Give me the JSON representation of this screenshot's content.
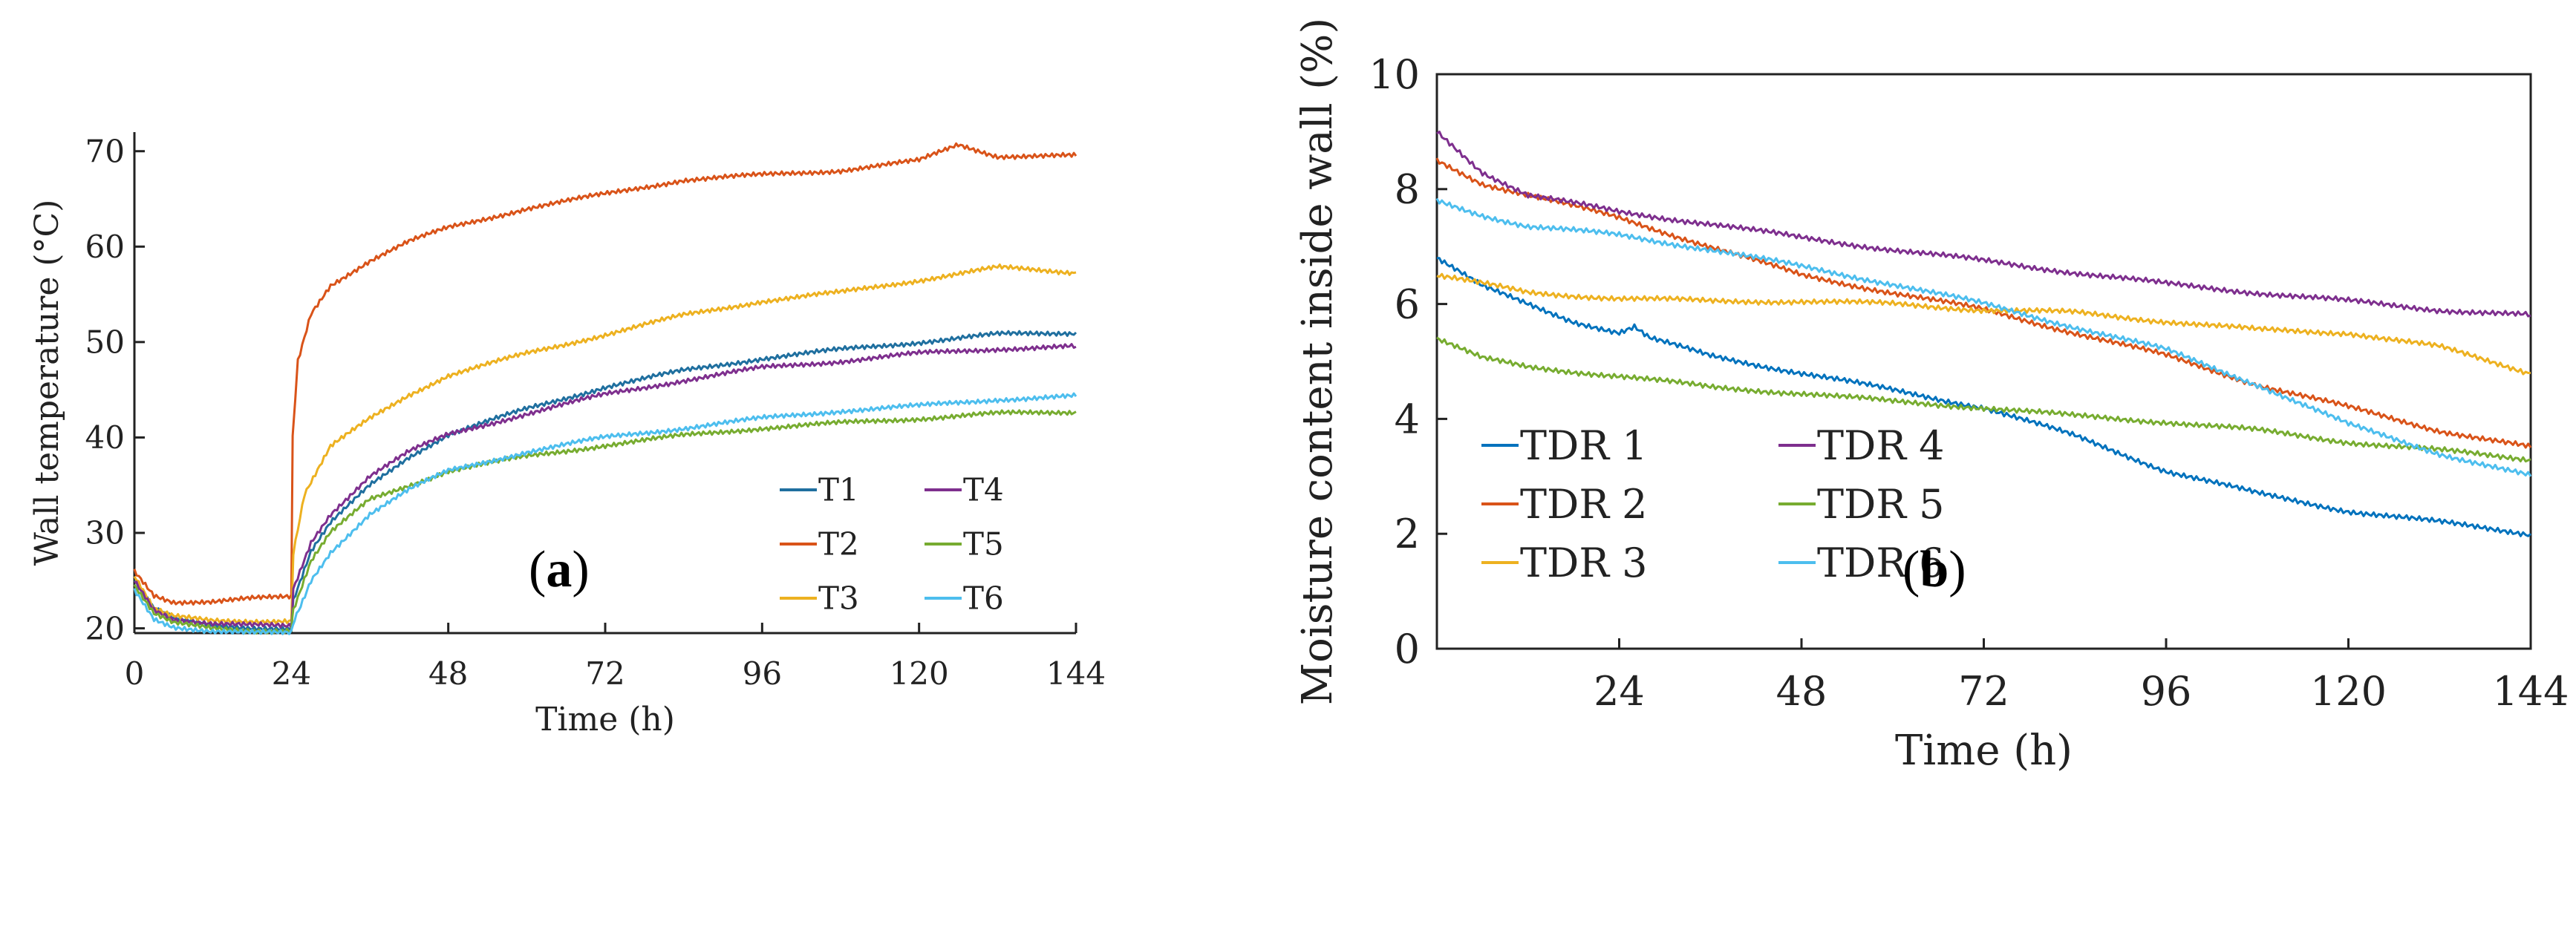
{
  "panels": [
    {
      "label_open": "(",
      "label_letter": "a",
      "label_close": ")"
    },
    {
      "label_open": "(",
      "label_letter": "b",
      "label_close": ")"
    }
  ],
  "chart_data": [
    {
      "type": "line",
      "title": "",
      "xlabel": "Time (h)",
      "ylabel": "Wall temperature (°C)",
      "xlim": [
        0,
        144
      ],
      "ylim": [
        19.5,
        72
      ],
      "xticks": [
        0,
        24,
        48,
        72,
        96,
        120,
        144
      ],
      "yticks": [
        20,
        30,
        40,
        50,
        60,
        70
      ],
      "grid": false,
      "legend": {
        "placement": "bottom-right",
        "columns": 2,
        "order": [
          "T1",
          "T4",
          "T2",
          "T5",
          "T3",
          "T6"
        ]
      },
      "series": [
        {
          "name": "T1",
          "color": "#1f6f9f",
          "x": [
            0,
            3,
            6,
            12,
            18,
            24,
            24.3,
            27,
            30,
            36,
            42,
            48,
            60,
            72,
            84,
            96,
            108,
            120,
            132,
            144
          ],
          "y": [
            25,
            22,
            21,
            20.3,
            20.1,
            20,
            23,
            28,
            31,
            35,
            38,
            40.3,
            43,
            45.3,
            47,
            48.3,
            49.2,
            50,
            50.8,
            51
          ]
        },
        {
          "name": "T2",
          "color": "#d95319",
          "x": [
            0,
            3,
            6,
            12,
            18,
            24,
            24.2,
            25,
            27,
            30,
            36,
            42,
            48,
            60,
            72,
            84,
            96,
            108,
            120,
            126,
            132,
            144
          ],
          "y": [
            26,
            23.5,
            22.8,
            22.8,
            23.1,
            23.3,
            40,
            48,
            53,
            56,
            58.5,
            60.5,
            62,
            64,
            65.5,
            67,
            67.5,
            68,
            69,
            70.7,
            69.5,
            69.5
          ]
        },
        {
          "name": "T3",
          "color": "#edb120",
          "x": [
            0,
            3,
            6,
            12,
            18,
            24,
            24.3,
            26,
            30,
            36,
            42,
            48,
            60,
            72,
            84,
            96,
            108,
            120,
            132,
            144
          ],
          "y": [
            25.5,
            22,
            21.2,
            20.8,
            20.8,
            20.8,
            28,
            34,
            39,
            42,
            44.5,
            46.5,
            48.8,
            50.8,
            52.8,
            54.3,
            55.2,
            56.5,
            57.8,
            57.3
          ]
        },
        {
          "name": "T4",
          "color": "#7e2f8e",
          "x": [
            0,
            3,
            6,
            12,
            18,
            24,
            24.3,
            27,
            30,
            36,
            42,
            48,
            60,
            72,
            84,
            96,
            108,
            120,
            132,
            144
          ],
          "y": [
            25,
            22,
            21,
            20.5,
            20.3,
            20.2,
            24,
            29,
            32,
            36,
            38.5,
            40.3,
            42.5,
            44.5,
            46,
            47.3,
            48,
            48.8,
            49.3,
            49.5
          ]
        },
        {
          "name": "T5",
          "color": "#77ac30",
          "x": [
            0,
            3,
            6,
            12,
            18,
            24,
            24.3,
            27,
            30,
            36,
            42,
            48,
            60,
            72,
            84,
            96,
            108,
            120,
            132,
            144
          ],
          "y": [
            24.5,
            21.5,
            20.5,
            20,
            19.8,
            19.8,
            22,
            27,
            30,
            33.5,
            35,
            36.5,
            38,
            39.2,
            40.2,
            41,
            41.5,
            42,
            42.5,
            42.7
          ]
        },
        {
          "name": "T6",
          "color": "#4dbeee",
          "x": [
            0,
            3,
            6,
            12,
            18,
            24,
            24.5,
            27,
            30,
            36,
            42,
            48,
            60,
            72,
            84,
            96,
            108,
            120,
            132,
            144
          ],
          "y": [
            24,
            21,
            20.2,
            19.7,
            19.5,
            19.5,
            21,
            25,
            28,
            32,
            34.5,
            36.5,
            38.5,
            40,
            41,
            42,
            42.8,
            43.3,
            44,
            44.3
          ]
        }
      ]
    },
    {
      "type": "line",
      "title": "",
      "xlabel": "Time (h)",
      "ylabel": "Moisture content inside wall (%)",
      "xlim": [
        0,
        144
      ],
      "ylim": [
        0,
        10
      ],
      "xticks": [
        24,
        48,
        72,
        96,
        120,
        144
      ],
      "yticks": [
        0,
        2,
        4,
        6,
        8,
        10
      ],
      "grid": false,
      "legend": {
        "placement": "bottom-left",
        "columns": 2,
        "order": [
          "TDR 1",
          "TDR 4",
          "TDR 2",
          "TDR 5",
          "TDR 3",
          "TDR 6"
        ]
      },
      "series": [
        {
          "name": "TDR 1",
          "color": "#0072bd",
          "x": [
            0,
            6,
            12,
            18,
            24,
            26,
            28,
            36,
            48,
            60,
            72,
            84,
            96,
            108,
            120,
            132,
            144
          ],
          "y": [
            6.8,
            6.3,
            6.0,
            5.7,
            5.5,
            5.6,
            5.4,
            5.1,
            4.8,
            4.5,
            4.2,
            3.7,
            3.1,
            2.7,
            2.4,
            2.2,
            2.0
          ]
        },
        {
          "name": "TDR 2",
          "color": "#d95319",
          "x": [
            0,
            6,
            12,
            24,
            36,
            48,
            60,
            72,
            84,
            96,
            108,
            120,
            132,
            144
          ],
          "y": [
            8.5,
            8.1,
            7.9,
            7.5,
            7.0,
            6.5,
            6.2,
            5.9,
            5.5,
            5.1,
            4.6,
            4.2,
            3.8,
            3.5
          ]
        },
        {
          "name": "TDR 3",
          "color": "#edb120",
          "x": [
            0,
            12,
            24,
            36,
            48,
            60,
            72,
            84,
            96,
            108,
            120,
            132,
            144
          ],
          "y": [
            6.5,
            6.2,
            6.1,
            6.05,
            6.05,
            6.0,
            5.9,
            5.85,
            5.7,
            5.55,
            5.5,
            5.25,
            4.8
          ]
        },
        {
          "name": "TDR 4",
          "color": "#7e2f8e",
          "x": [
            0,
            6,
            12,
            24,
            36,
            48,
            60,
            72,
            84,
            96,
            108,
            120,
            132,
            144
          ],
          "y": [
            9.0,
            8.3,
            7.9,
            7.6,
            7.4,
            7.15,
            6.95,
            6.75,
            6.55,
            6.35,
            6.2,
            6.05,
            5.9,
            5.8
          ]
        },
        {
          "name": "TDR 5",
          "color": "#77ac30",
          "x": [
            0,
            6,
            12,
            24,
            36,
            48,
            60,
            72,
            84,
            96,
            108,
            120,
            132,
            144
          ],
          "y": [
            5.4,
            5.05,
            4.9,
            4.75,
            4.55,
            4.45,
            4.3,
            4.2,
            4.05,
            3.95,
            3.8,
            3.6,
            3.45,
            3.3
          ]
        },
        {
          "name": "TDR 6",
          "color": "#4dbeee",
          "x": [
            0,
            6,
            12,
            24,
            36,
            48,
            60,
            72,
            84,
            96,
            108,
            120,
            132,
            144
          ],
          "y": [
            7.8,
            7.55,
            7.35,
            7.2,
            6.95,
            6.65,
            6.35,
            6.0,
            5.6,
            5.2,
            4.6,
            3.9,
            3.4,
            3.0
          ]
        }
      ]
    }
  ]
}
